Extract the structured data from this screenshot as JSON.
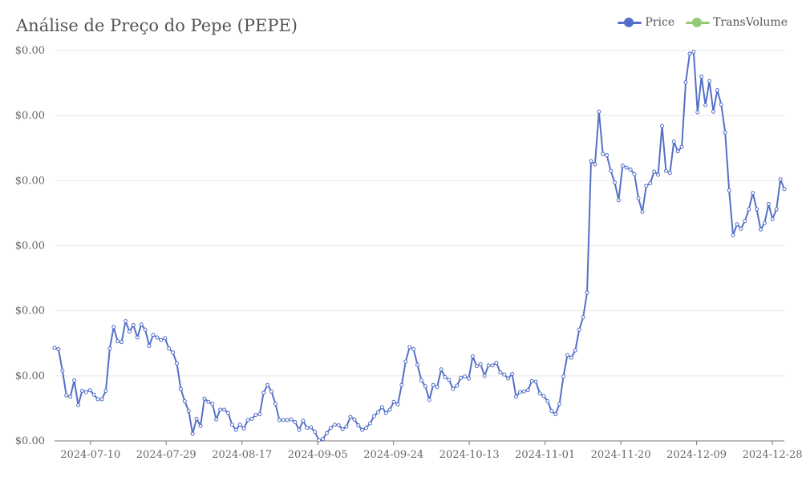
{
  "chart_data": {
    "type": "line",
    "title": "Análise de Preço do Pepe (PEPE)",
    "xlabel": "",
    "ylabel": "",
    "y_tick_labels": [
      "$0.00",
      "$0.00",
      "$0.00",
      "$0.00",
      "$0.00",
      "$0.00",
      "$0.00"
    ],
    "x_tick_labels": [
      "2024-07-10",
      "2024-07-29",
      "2024-08-17",
      "2024-09-05",
      "2024-09-24",
      "2024-10-13",
      "2024-11-01",
      "2024-11-20",
      "2024-12-09",
      "2024-12-28"
    ],
    "x_start": "2024-07-01",
    "x_end": "2024-12-31",
    "ylim": [
      0,
      6
    ],
    "grid": true,
    "legend_position": "top-right",
    "series": [
      {
        "name": "Price",
        "color": "#5470c6",
        "values": [
          1.43,
          1.41,
          1.08,
          0.7,
          0.68,
          0.93,
          0.55,
          0.77,
          0.75,
          0.78,
          0.71,
          0.64,
          0.64,
          0.77,
          1.42,
          1.75,
          1.53,
          1.52,
          1.84,
          1.68,
          1.78,
          1.59,
          1.79,
          1.71,
          1.46,
          1.63,
          1.59,
          1.55,
          1.58,
          1.42,
          1.36,
          1.19,
          0.8,
          0.61,
          0.46,
          0.11,
          0.34,
          0.23,
          0.65,
          0.6,
          0.57,
          0.33,
          0.48,
          0.48,
          0.43,
          0.25,
          0.17,
          0.25,
          0.19,
          0.32,
          0.34,
          0.4,
          0.41,
          0.74,
          0.86,
          0.76,
          0.57,
          0.32,
          0.32,
          0.32,
          0.33,
          0.29,
          0.17,
          0.31,
          0.2,
          0.21,
          0.14,
          0.01,
          0.03,
          0.12,
          0.2,
          0.25,
          0.24,
          0.18,
          0.22,
          0.37,
          0.33,
          0.24,
          0.17,
          0.2,
          0.27,
          0.38,
          0.44,
          0.52,
          0.43,
          0.48,
          0.6,
          0.56,
          0.86,
          1.22,
          1.44,
          1.41,
          1.17,
          0.93,
          0.84,
          0.63,
          0.86,
          0.83,
          1.1,
          0.98,
          0.94,
          0.8,
          0.85,
          0.97,
          0.99,
          0.96,
          1.3,
          1.15,
          1.18,
          1.0,
          1.16,
          1.16,
          1.2,
          1.05,
          1.02,
          0.96,
          1.03,
          0.68,
          0.75,
          0.76,
          0.78,
          0.92,
          0.91,
          0.73,
          0.69,
          0.61,
          0.46,
          0.41,
          0.57,
          0.99,
          1.32,
          1.28,
          1.39,
          1.71,
          1.9,
          2.28,
          4.3,
          4.25,
          5.06,
          4.41,
          4.39,
          4.15,
          3.97,
          3.7,
          4.23,
          4.2,
          4.17,
          4.1,
          3.73,
          3.52,
          3.92,
          3.96,
          4.14,
          4.09,
          4.84,
          4.15,
          4.12,
          4.6,
          4.45,
          4.52,
          5.51,
          5.95,
          5.98,
          5.05,
          5.6,
          5.16,
          5.53,
          5.06,
          5.39,
          5.17,
          4.74,
          3.85,
          3.16,
          3.33,
          3.26,
          3.38,
          3.56,
          3.81,
          3.56,
          3.25,
          3.35,
          3.64,
          3.41,
          3.56,
          4.02,
          3.87
        ]
      },
      {
        "name": "TransVolume",
        "color": "#91cc75",
        "values": []
      }
    ]
  }
}
